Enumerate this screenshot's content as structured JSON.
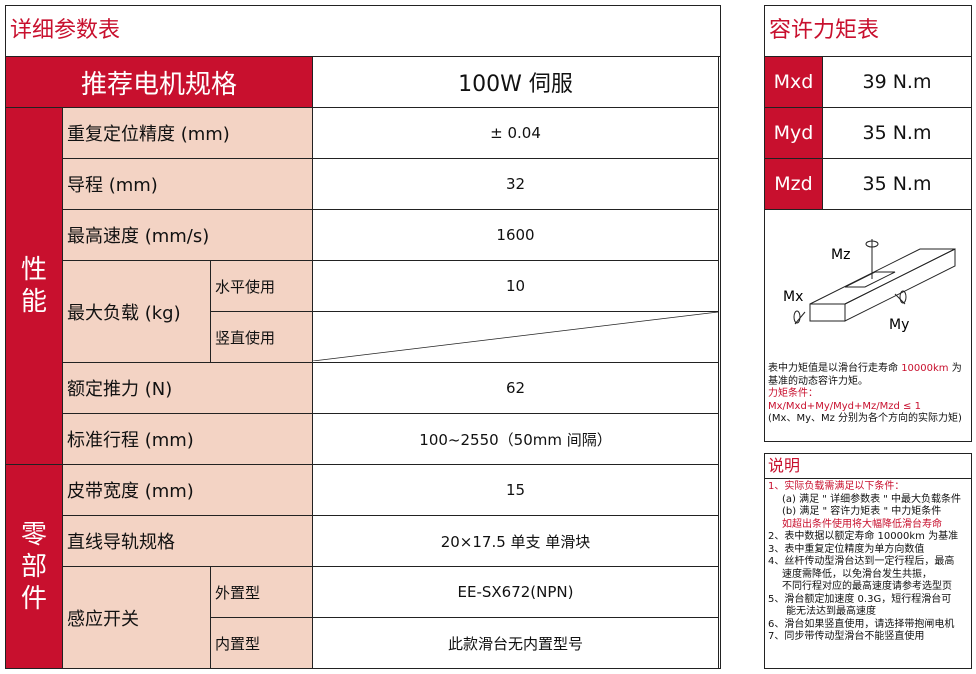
{
  "left": {
    "title": "详细参数表",
    "header": {
      "label": "推荐电机规格",
      "value": "100W 伺服"
    },
    "groups": {
      "performance": "性\n能",
      "parts": "零\n部\n件"
    },
    "rows": {
      "repeat": {
        "label": "重复定位精度 (mm)",
        "value": "± 0.04"
      },
      "lead": {
        "label": "导程 (mm)",
        "value": "32"
      },
      "speed": {
        "label": "最高速度 (mm/s)",
        "value": "1600"
      },
      "load": {
        "label": "最大负载 (kg)",
        "horizontal": "水平使用",
        "horizontal_value": "10",
        "vertical": "竖直使用"
      },
      "thrust": {
        "label": "额定推力 (N)",
        "value": "62"
      },
      "stroke": {
        "label": "标准行程 (mm)",
        "value": "100~2550（50mm 间隔）"
      },
      "belt": {
        "label": "皮带宽度 (mm)",
        "value": "15"
      },
      "rail": {
        "label": "直线导轨规格",
        "value": "20×17.5  单支  单滑块"
      },
      "sensor": {
        "label": "感应开关",
        "external": "外置型",
        "external_value": "EE-SX672(NPN)",
        "internal": "内置型",
        "internal_value": "此款滑台无内置型号"
      }
    }
  },
  "right": {
    "title": "容许力矩表",
    "moments": [
      {
        "name": "Mxd",
        "value": "39 N.m"
      },
      {
        "name": "Myd",
        "value": "35 N.m"
      },
      {
        "name": "Mzd",
        "value": "35 N.m"
      }
    ],
    "diagram": {
      "mz": "Mz",
      "mx": "Mx",
      "my": "My"
    },
    "desc1": "表中力矩值是以滑台行走寿命 ",
    "desc_life": "10000km",
    "desc2": " 为基准的动态容许力矩。",
    "cond_title": "力矩条件：",
    "cond": "Mx/Mxd+My/Myd+Mz/Mzd ≤ 1",
    "cond_note": "(Mx、My、Mz 分别为各个方向的实际力矩)"
  },
  "notes": {
    "title": "说明",
    "items": [
      "1、实际负载需满足以下条件：",
      "(a) 满足 \" 详细参数表 \" 中最大负载条件",
      "(b) 满足 \" 容许力矩表 \" 中力矩条件",
      "如超出条件使用将大幅降低滑台寿命",
      "2、表中数据以额定寿命 10000km 为基准",
      "3、表中重复定位精度为单方向数值",
      "4、丝杆传动型滑台达到一定行程后，最高",
      "速度需降低，以免滑台发生共振，",
      "不同行程对应的最高速度请参考选型页",
      "5、滑台额定加速度 0.3G，短行程滑台可",
      "能无法达到最高速度",
      "6、滑台如果竖直使用，请选择带抱闸电机",
      "7、同步带传动型滑台不能竖直使用"
    ]
  }
}
